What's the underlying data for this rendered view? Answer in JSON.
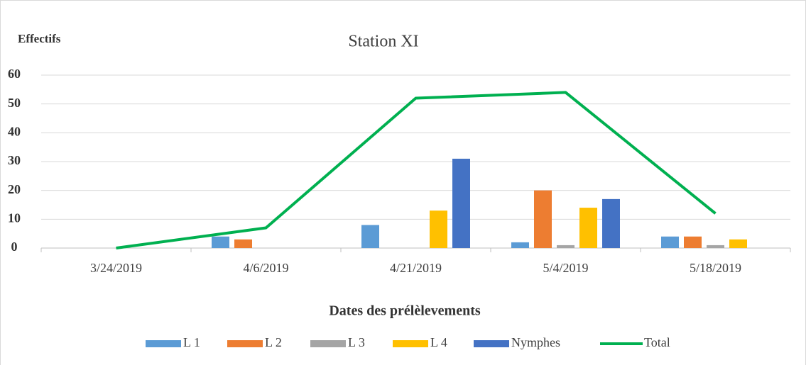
{
  "chart_data": {
    "type": "bar",
    "title": "Station XI",
    "y_label": "Effectifs",
    "x_label": "Dates des prélèlevements",
    "categories": [
      "3/24/2019",
      "4/6/2019",
      "4/21/2019",
      "5/4/2019",
      "5/18/2019"
    ],
    "series": [
      {
        "name": "L 1",
        "color": "#5b9bd5",
        "values": [
          0,
          4,
          8,
          2,
          4
        ]
      },
      {
        "name": "L 2",
        "color": "#ed7d31",
        "values": [
          0,
          3,
          0,
          20,
          4
        ]
      },
      {
        "name": "L 3",
        "color": "#a5a5a5",
        "values": [
          0,
          0,
          0,
          1,
          1
        ]
      },
      {
        "name": "L 4",
        "color": "#ffc000",
        "values": [
          0,
          0,
          13,
          14,
          3
        ]
      },
      {
        "name": "Nymphes",
        "color": "#4472c4",
        "values": [
          0,
          0,
          31,
          17,
          0
        ]
      },
      {
        "name": "Total",
        "color": "#00b050",
        "type": "line",
        "values": [
          0,
          7,
          52,
          54,
          12
        ]
      }
    ],
    "ylim": [
      0,
      60
    ],
    "yticks": [
      0,
      10,
      20,
      30,
      40,
      50,
      60
    ],
    "grid": true,
    "legend": "bottom"
  }
}
